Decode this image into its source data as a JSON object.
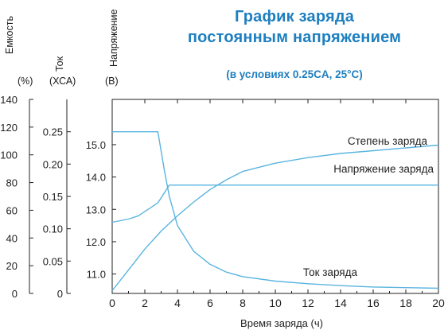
{
  "title_line1": "График заряда",
  "title_line2": "постоянным напряжением",
  "subtitle": "(в условиях 0.25CA, 25°C)",
  "axes": {
    "capacity": {
      "name": "Емкость",
      "unit": "(%)"
    },
    "current": {
      "name": "Ток",
      "unit": "(ХСА)"
    },
    "voltage": {
      "name": "Напряжение",
      "unit": "(В)"
    }
  },
  "chart_data": {
    "type": "line",
    "title": "График заряда постоянным напряжением",
    "subtitle": "(в условиях 0.25CA, 25°C)",
    "xlabel": "Время заряда (ч)",
    "xlim": [
      0,
      20
    ],
    "x_ticks": [
      0,
      2,
      4,
      6,
      8,
      10,
      12,
      14,
      16,
      18,
      20
    ],
    "y_axes": [
      {
        "label": "Емкость (%)",
        "lim": [
          0,
          140
        ],
        "ticks": [
          0,
          20,
          40,
          60,
          80,
          100,
          120,
          140
        ]
      },
      {
        "label": "Ток (ХСА)",
        "lim": [
          0,
          0.3
        ],
        "ticks": [
          "0",
          "0.05",
          "0.10",
          "0.15",
          "0.20",
          "0.25"
        ]
      },
      {
        "label": "Напряжение (В)",
        "lim": [
          10.4,
          16.4
        ],
        "ticks": [
          "11.0",
          "12.0",
          "13.0",
          "14.0",
          "15.0"
        ]
      }
    ],
    "grid": false,
    "line_color": "#5ab4e0",
    "series": [
      {
        "name": "Степень заряда",
        "axis": "Емкость (%)",
        "x": [
          0,
          1,
          2,
          3,
          4,
          5,
          6,
          7,
          8,
          10,
          12,
          14,
          16,
          18,
          20
        ],
        "y": [
          2,
          17,
          32,
          45,
          56,
          66,
          75,
          82,
          88,
          94,
          98,
          101,
          103,
          105,
          107
        ]
      },
      {
        "name": "Напряжение заряда",
        "axis": "Напряжение (В)",
        "x": [
          0,
          1,
          1.6,
          2.2,
          2.8,
          3.5,
          20
        ],
        "y": [
          12.6,
          12.7,
          12.8,
          13.0,
          13.2,
          13.75,
          13.75
        ]
      },
      {
        "name": "Ток заряда",
        "axis": "Ток (ХСА)",
        "x": [
          0,
          2.8,
          3.2,
          3.5,
          4,
          5,
          6,
          7,
          8,
          10,
          12,
          14,
          16,
          18,
          20
        ],
        "y": [
          0.25,
          0.25,
          0.19,
          0.15,
          0.105,
          0.065,
          0.045,
          0.033,
          0.026,
          0.019,
          0.015,
          0.012,
          0.01,
          0.009,
          0.008
        ]
      }
    ]
  }
}
